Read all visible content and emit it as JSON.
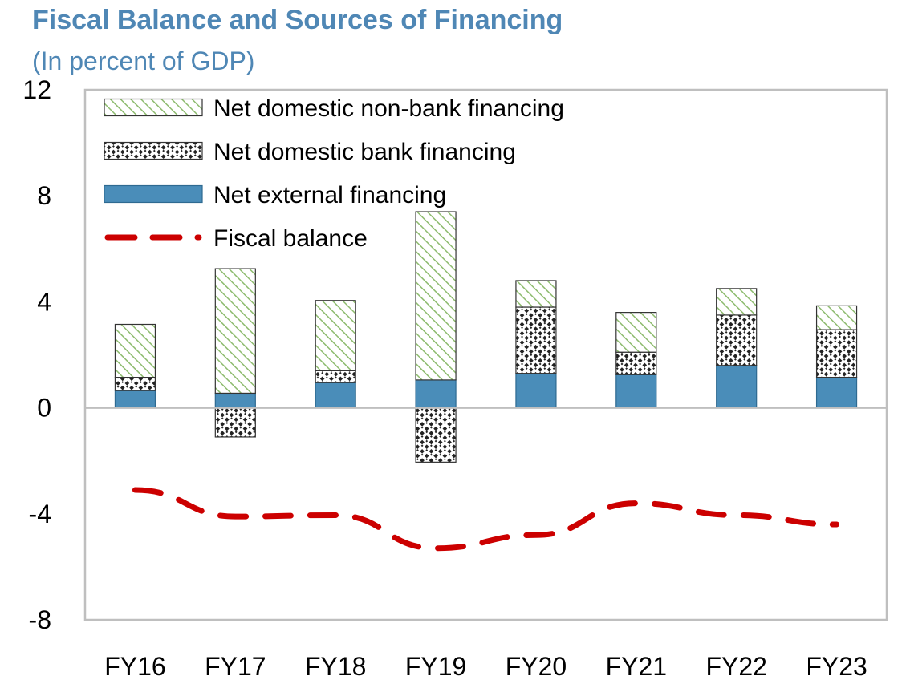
{
  "chart_data": {
    "type": "bar",
    "title": "Fiscal Balance and Sources of Financing",
    "subtitle": "(In percent of GDP)",
    "categories": [
      "FY16",
      "FY17",
      "FY18",
      "FY19",
      "FY20",
      "FY21",
      "FY22",
      "FY23"
    ],
    "ylim": [
      -8,
      12
    ],
    "yticks": [
      "12",
      "8",
      "4",
      "0",
      "-4",
      "-8"
    ],
    "ytick_values": [
      12,
      8,
      4,
      0,
      -4,
      -8
    ],
    "stacked": true,
    "series": [
      {
        "name": "Net external financing",
        "kind": "bar",
        "pattern": "solid",
        "values": [
          0.65,
          0.55,
          0.95,
          1.05,
          1.3,
          1.25,
          1.6,
          1.15
        ]
      },
      {
        "name": "Net domestic bank financing",
        "kind": "bar",
        "pattern": "checker",
        "values": [
          0.5,
          -1.1,
          0.45,
          -2.05,
          2.5,
          0.85,
          1.9,
          1.8
        ]
      },
      {
        "name": "Net domestic non-bank financing",
        "kind": "bar",
        "pattern": "diagonal",
        "values": [
          2.0,
          4.7,
          2.65,
          6.35,
          1.0,
          1.5,
          1.0,
          0.9
        ]
      },
      {
        "name": "Fiscal balance",
        "kind": "line",
        "style": "dashed",
        "values": [
          -3.1,
          -4.1,
          -4.05,
          -5.3,
          -4.8,
          -3.6,
          -4.05,
          -4.4
        ]
      }
    ],
    "legend": [
      "Net domestic non-bank financing",
      "Net domestic bank financing",
      "Net external financing",
      "Fiscal balance"
    ],
    "legend_position": "top-left",
    "colors": {
      "external": "#4a8db9",
      "external_edge": "#2e6a91",
      "nonbank": "#8dbb6e",
      "bank": "#222222",
      "fiscal": "#cc0000"
    }
  }
}
